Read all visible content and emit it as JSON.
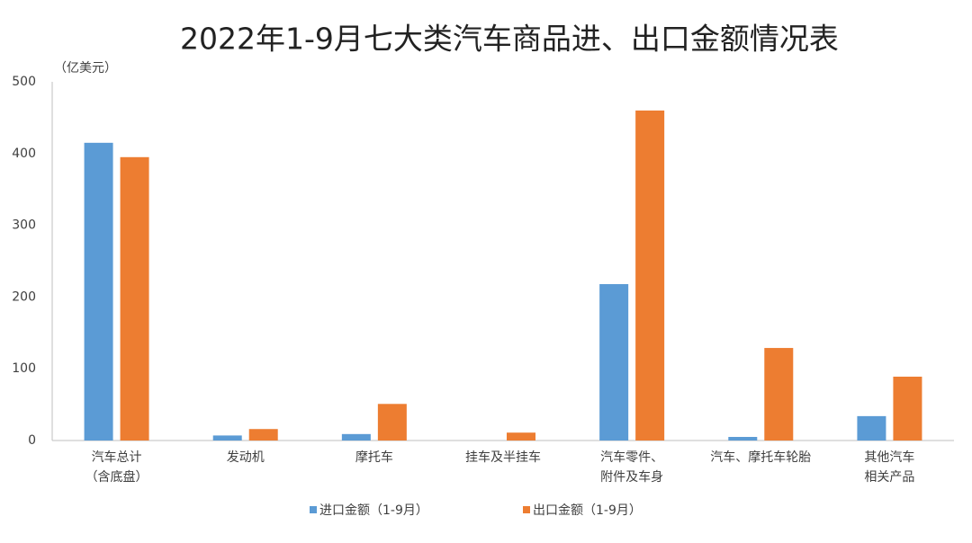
{
  "chart_data": {
    "type": "bar",
    "title": "2022年1-9月七大类汽车商品进、出口金额情况表",
    "y_unit": "（亿美元）",
    "categories": [
      [
        "汽车总计",
        "（含底盘）"
      ],
      [
        "发动机"
      ],
      [
        "摩托车"
      ],
      [
        "挂车及半挂车"
      ],
      [
        "汽车零件、",
        "附件及车身"
      ],
      [
        "汽车、摩托车轮胎"
      ],
      [
        "其他汽车",
        "相关产品"
      ]
    ],
    "series": [
      {
        "name": "进口金额（1-9月）",
        "color": "#5b9bd5",
        "values": [
          415,
          7,
          9,
          0,
          218,
          5,
          34
        ]
      },
      {
        "name": "出口金额（1-9月）",
        "color": "#ed7d31",
        "values": [
          395,
          16,
          51,
          11,
          460,
          129,
          89
        ]
      }
    ],
    "ylim": [
      0,
      500
    ],
    "yticks": [
      0,
      100,
      200,
      300,
      400,
      500
    ],
    "grid": false,
    "legend": "bottom"
  }
}
